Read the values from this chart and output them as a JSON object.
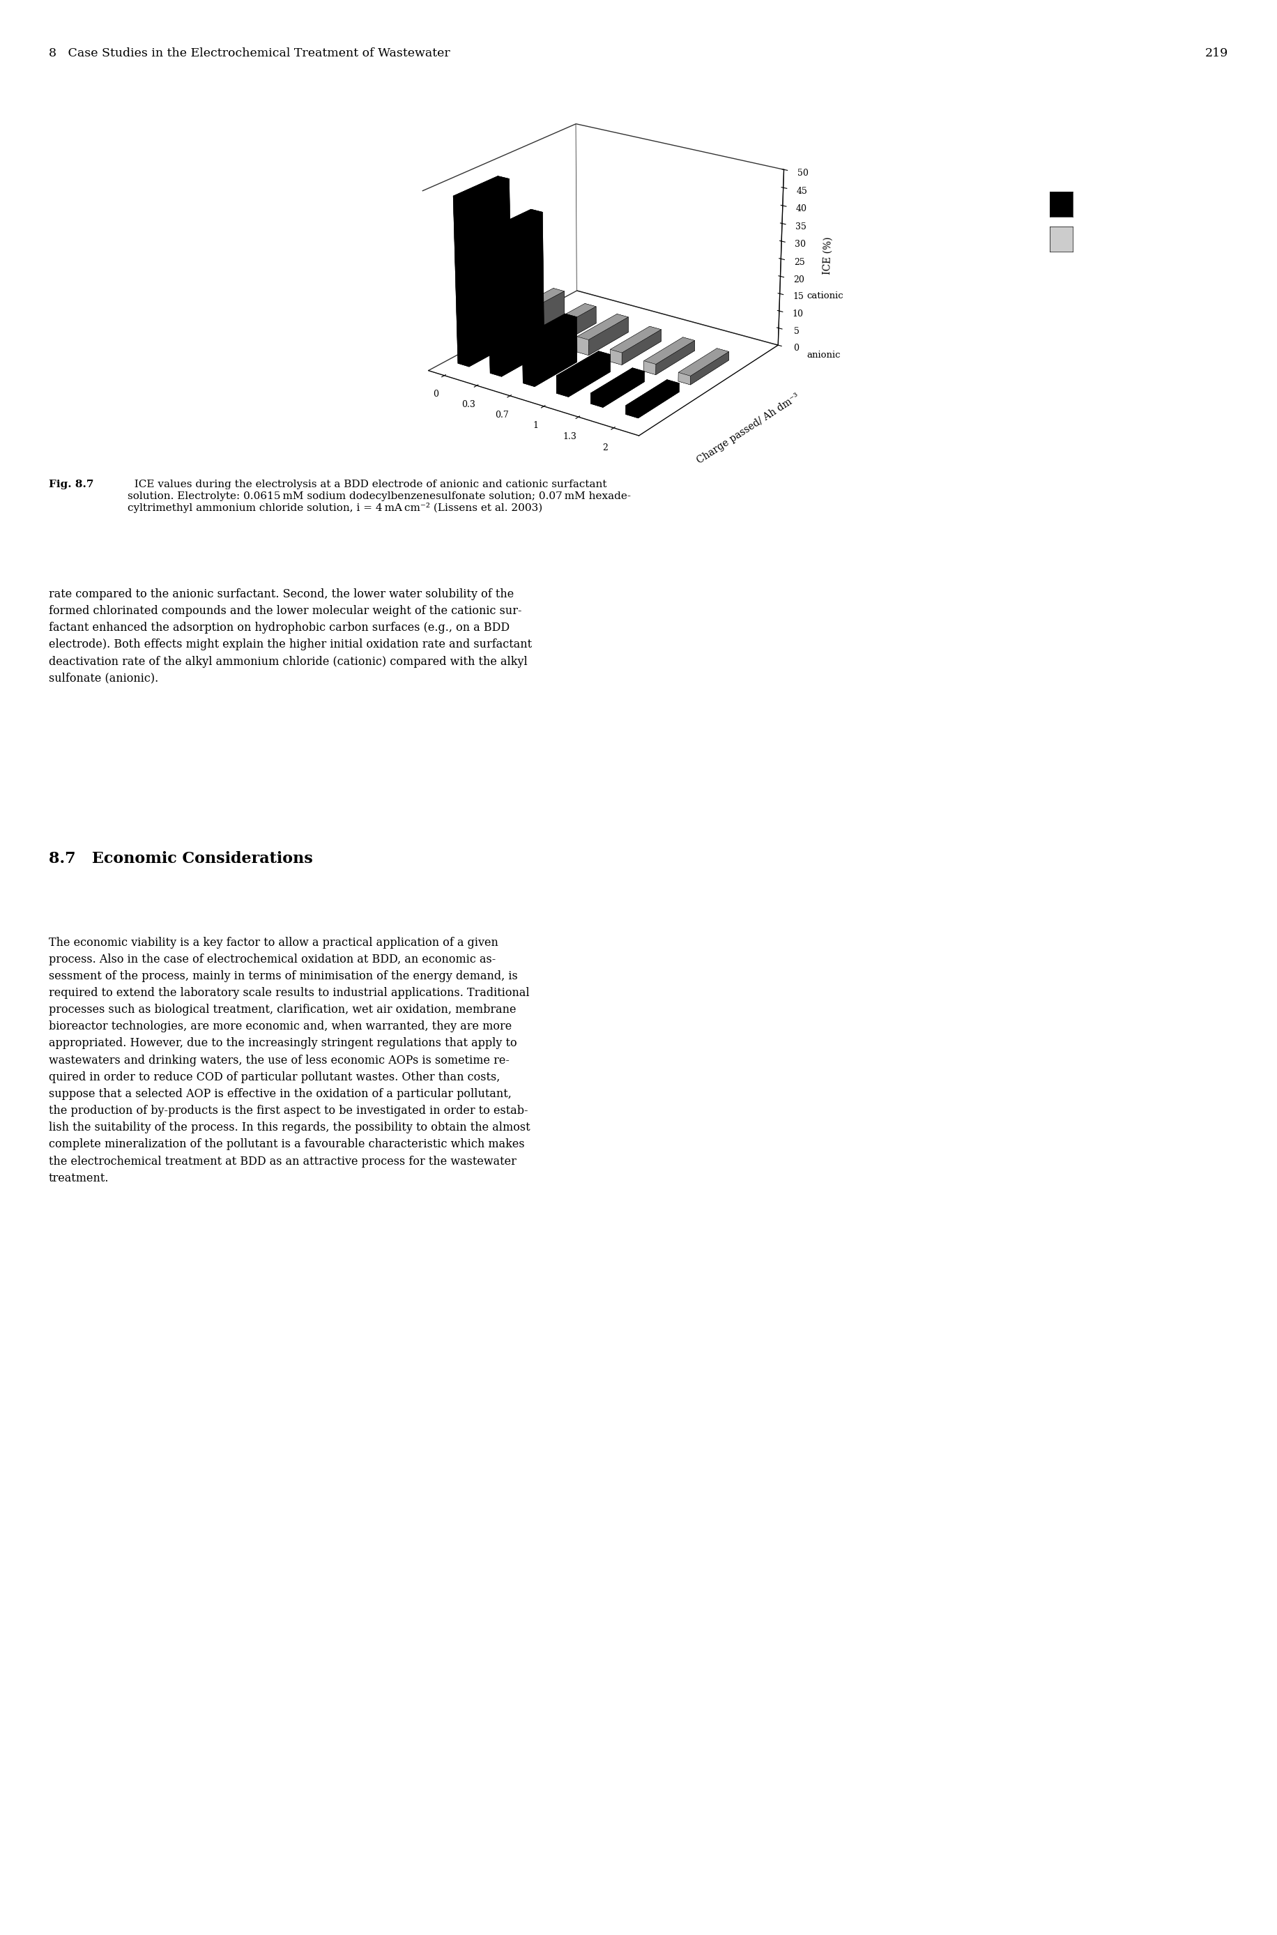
{
  "page_header": "8   Case Studies in the Electrochemical Treatment of Wastewater",
  "page_number": "219",
  "ylabel": "ICE (%)",
  "xlabel": "Charge passed/ Ah dm⁻³",
  "yticks": [
    0,
    5,
    10,
    15,
    20,
    25,
    30,
    35,
    40,
    45,
    50
  ],
  "ylim": [
    0,
    50
  ],
  "xtick_labels": [
    "0",
    "0.3",
    "0.7",
    "1",
    "1.3",
    "2"
  ],
  "legend_labels": [
    "cationic",
    "anionic"
  ],
  "cationic_values": [
    47.0,
    40.0,
    13.0,
    5.0,
    3.0,
    2.5
  ],
  "anionic_values": [
    7.0,
    5.0,
    4.5,
    3.5,
    3.0,
    2.5
  ],
  "cationic_color": "#000000",
  "anionic_facecolor": "#cccccc",
  "background_color": "#ffffff",
  "caption_bold": "Fig. 8.7",
  "caption_text": "  ICE values during the electrolysis at a BDD electrode of anionic and cationic surfactant\nsolution. Electrolyte: 0.0615 mM sodium dodecylbenzenesulfonate solution; 0.07 mM hexade-\ncyltrimethyl ammonium chloride solution, i = 4 mA cm⁻² (Lissens et al. 2003)",
  "body_text_1": "rate compared to the anionic surfactant. Second, the lower water solubility of the\nformed chlorinated compounds and the lower molecular weight of the cationic sur-\nfactant enhanced the adsorption on hydrophobic carbon surfaces (e.g., on a BDD\nelectrode). Both effects might explain the higher initial oxidation rate and surfactant\ndeactivation rate of the alkyl ammonium chloride (cationic) compared with the alkyl\nsulfonate (anionic).",
  "section_header": "8.7   Economic Considerations",
  "body_text_2": "The economic viability is a key factor to allow a practical application of a given\nprocess. Also in the case of electrochemical oxidation at BDD, an economic as-\nsessment of the process, mainly in terms of minimisation of the energy demand, is\nrequired to extend the laboratory scale results to industrial applications. Traditional\nprocesses such as biological treatment, clarification, wet air oxidation, membrane\nbioreactor technologies, are more economic and, when warranted, they are more\nappropriated. However, due to the increasingly stringent regulations that apply to\nwastewaters and drinking waters, the use of less economic AOPs is sometime re-\nquired in order to reduce COD of particular pollutant wastes. Other than costs,\nsuppose that a selected AOP is effective in the oxidation of a particular pollutant,\nthe production of by-products is the first aspect to be investigated in order to estab-\nlish the suitability of the process. In this regards, the possibility to obtain the almost\ncomplete mineralization of the pollutant is a favourable characteristic which makes\nthe electrochemical treatment at BDD as an attractive process for the wastewater\ntreatment."
}
